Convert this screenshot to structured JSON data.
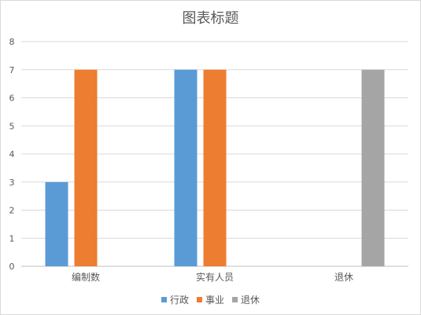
{
  "chart_data": {
    "type": "bar",
    "title": "图表标题",
    "categories": [
      "编制数",
      "实有人员",
      "退休"
    ],
    "series": [
      {
        "name": "行政",
        "color": "#5b9bd5",
        "values": [
          3,
          7,
          null
        ]
      },
      {
        "name": "事业",
        "color": "#ed7d31",
        "values": [
          7,
          7,
          null
        ]
      },
      {
        "name": "退休",
        "color": "#a5a5a5",
        "values": [
          null,
          null,
          7
        ]
      }
    ],
    "ylim": [
      0,
      8
    ],
    "yticks": [
      0,
      1,
      2,
      3,
      4,
      5,
      6,
      7,
      8
    ],
    "grid": true,
    "legend_position": "bottom"
  }
}
